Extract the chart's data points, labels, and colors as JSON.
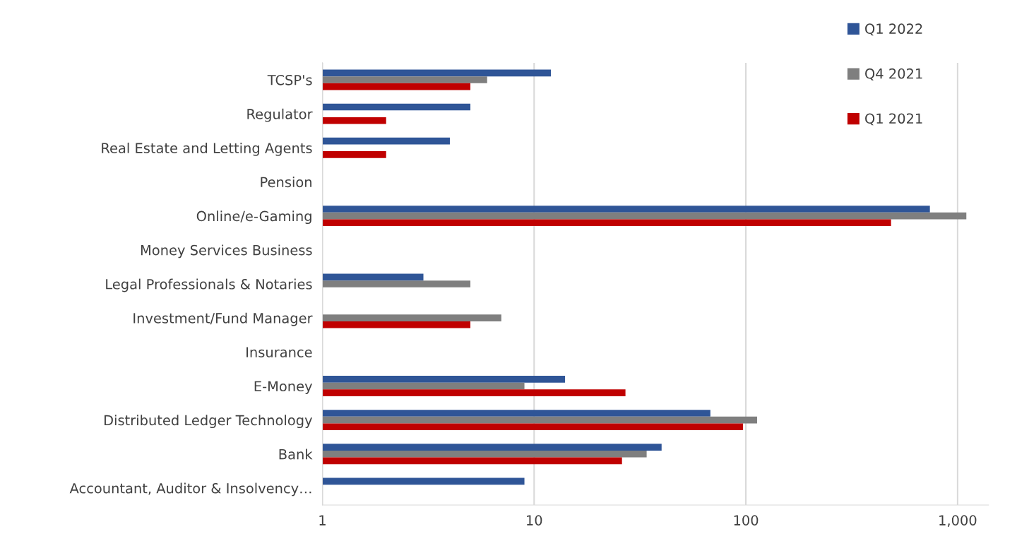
{
  "chart_data": {
    "type": "bar",
    "orientation": "horizontal",
    "log": "x",
    "categories": [
      "TCSP's",
      "Regulator",
      "Real Estate and Letting Agents",
      "Pension",
      "Online/e-Gaming",
      "Money Services Business",
      "Legal Professionals & Notaries",
      "Investment/Fund Manager",
      "Insurance",
      "E-Money",
      "Distributed Ledger Technology",
      "Bank",
      "Accountant, Auditor & Insolvency…"
    ],
    "series": [
      {
        "name": "Q1 2022",
        "color": "#2f5597",
        "values": [
          12,
          5,
          4,
          null,
          740,
          null,
          3,
          null,
          null,
          14,
          68,
          40,
          9
        ]
      },
      {
        "name": "Q4 2021",
        "color": "#7f7f7f",
        "values": [
          6,
          null,
          null,
          null,
          1100,
          null,
          5,
          7,
          null,
          9,
          113,
          34,
          null
        ]
      },
      {
        "name": "Q1 2021",
        "color": "#c00000",
        "values": [
          5,
          2,
          2,
          null,
          485,
          null,
          null,
          5,
          null,
          27,
          97,
          26,
          null
        ]
      }
    ],
    "xlim": [
      1,
      1400
    ],
    "xticks": [
      1,
      10,
      100,
      {
        "value": 1000,
        "label": "1,000"
      }
    ],
    "grid": "x",
    "legend": "top right"
  }
}
